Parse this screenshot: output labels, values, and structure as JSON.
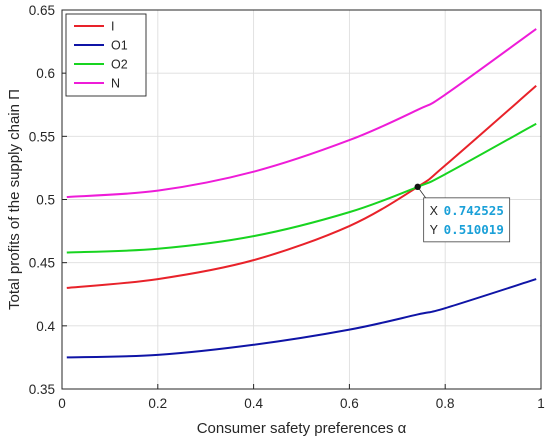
{
  "chart_data": {
    "type": "line",
    "title": "",
    "xlabel": "Consumer safety preferences α",
    "ylabel": "Total profits of the supply chain Π",
    "xlim": [
      0,
      1
    ],
    "ylim": [
      0.35,
      0.65
    ],
    "xticks": [
      0,
      0.2,
      0.4,
      0.6,
      0.8,
      1
    ],
    "xtick_labels": [
      "0",
      "0.2",
      "0.4",
      "0.6",
      "0.8",
      "1"
    ],
    "yticks": [
      0.35,
      0.4,
      0.45,
      0.5,
      0.55,
      0.6,
      0.65
    ],
    "ytick_labels": [
      "0.35",
      "0.4",
      "0.45",
      "0.5",
      "0.55",
      "0.6",
      "0.65"
    ],
    "grid": true,
    "legend_position": "top-left",
    "x": [
      0.01,
      0.2,
      0.4,
      0.6,
      0.742525,
      0.8,
      0.99
    ],
    "series": [
      {
        "name": "I",
        "color": "#e8222a",
        "values": [
          0.43,
          0.437,
          0.452,
          0.479,
          0.51,
          0.527,
          0.59
        ]
      },
      {
        "name": "O1",
        "color": "#0f14a6",
        "values": [
          0.375,
          0.377,
          0.385,
          0.397,
          0.409,
          0.414,
          0.437
        ]
      },
      {
        "name": "O2",
        "color": "#18d420",
        "values": [
          0.458,
          0.461,
          0.471,
          0.49,
          0.51,
          0.52,
          0.56
        ]
      },
      {
        "name": "N",
        "color": "#ee1cd8",
        "values": [
          0.502,
          0.507,
          0.522,
          0.547,
          0.571,
          0.583,
          0.635
        ]
      }
    ],
    "datatip": {
      "x_label": "X",
      "x_value": "0.742525",
      "y_label": "Y",
      "y_value": "0.510019",
      "x": 0.742525,
      "y": 0.510019
    }
  }
}
